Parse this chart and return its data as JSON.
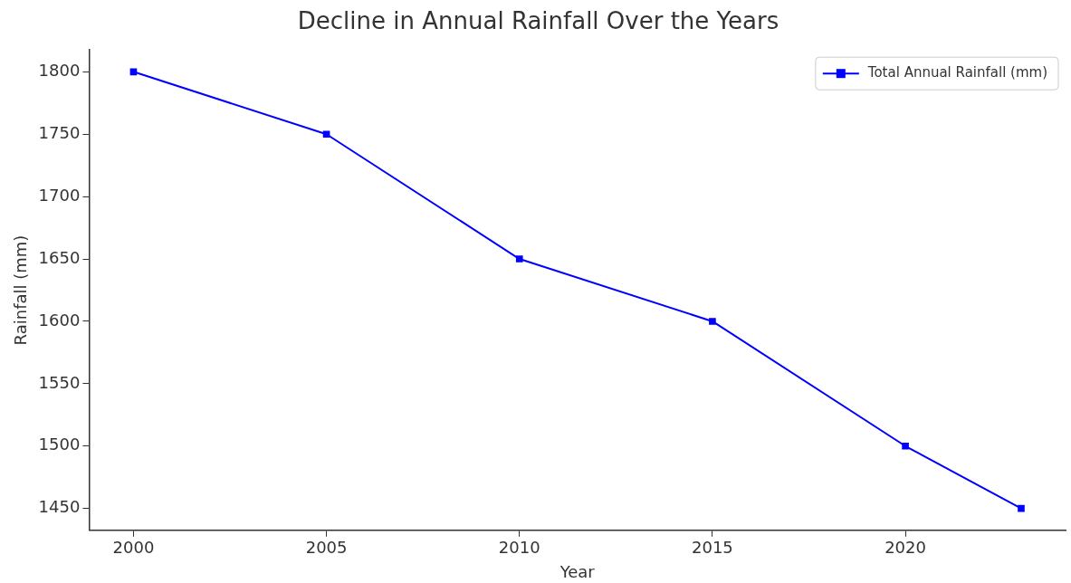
{
  "chart_data": {
    "type": "line",
    "title": "Decline in Annual Rainfall Over the Years",
    "xlabel": "Year",
    "ylabel": "Rainfall (mm)",
    "x": [
      2000,
      2005,
      2010,
      2015,
      2020,
      2023
    ],
    "series": [
      {
        "name": "Total Annual Rainfall (mm)",
        "color": "#0000ff",
        "values": [
          1800,
          1750,
          1650,
          1600,
          1500,
          1450
        ]
      }
    ],
    "xlim": [
      1998.85,
      2024.15
    ],
    "xticks": [
      2000,
      2005,
      2010,
      2015,
      2020
    ],
    "ylim": [
      1432.5,
      1817.5
    ],
    "yticks": [
      1450,
      1500,
      1550,
      1600,
      1650,
      1700,
      1750,
      1800
    ],
    "grid": false,
    "legend": "top right",
    "marker": "square",
    "line_style": "solid"
  }
}
